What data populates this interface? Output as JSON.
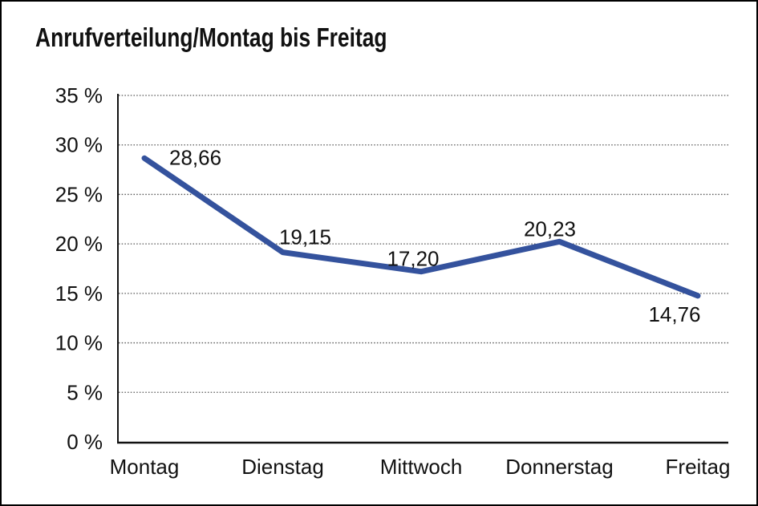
{
  "title": "Anrufverteilung/Montag bis Freitag",
  "colors": {
    "line": "#34529D",
    "text": "#111111",
    "grid": "#555555",
    "axis": "#111111",
    "background": "#FFFFFF",
    "frame_border": "#000000"
  },
  "chart_data": {
    "type": "line",
    "title": "Anrufverteilung/Montag bis Freitag",
    "categories": [
      "Montag",
      "Dienstag",
      "Mittwoch",
      "Donnerstag",
      "Freitag"
    ],
    "values": [
      28.66,
      19.15,
      17.2,
      20.23,
      14.76
    ],
    "point_labels": [
      "28,66",
      "19,15",
      "17,20",
      "20,23",
      "14,76"
    ],
    "y_ticks": [
      {
        "value": 0,
        "label": "0 %"
      },
      {
        "value": 5,
        "label": "5 %"
      },
      {
        "value": 10,
        "label": "10 %"
      },
      {
        "value": 15,
        "label": "15 %"
      },
      {
        "value": 20,
        "label": "20 %"
      },
      {
        "value": 25,
        "label": "25 %"
      },
      {
        "value": 30,
        "label": "30 %"
      },
      {
        "value": 35,
        "label": "35 %"
      }
    ],
    "ylim": [
      0,
      35
    ],
    "xlabel": "",
    "ylabel": "",
    "grid": "horizontal-dotted",
    "legend": "none",
    "line_color": "#34529D"
  }
}
